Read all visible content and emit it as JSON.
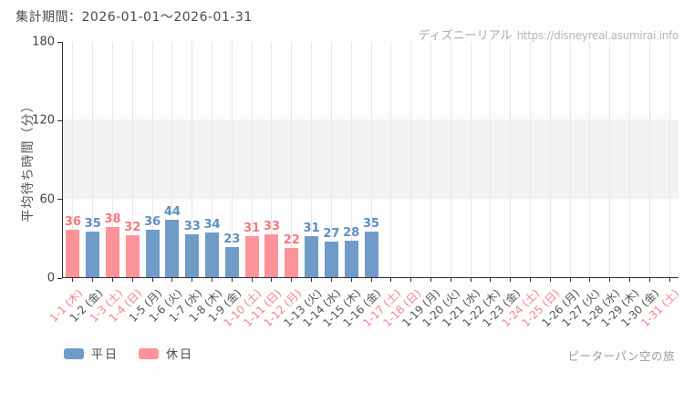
{
  "header": {
    "title": "集計期間：2026-01-01～2026-01-31"
  },
  "watermark": {
    "brand": "ディズニーリアル",
    "url": "https://disneyreal.asumirai.info"
  },
  "footer": {
    "attraction": "ピーターパン空の旅"
  },
  "legend": {
    "items": [
      {
        "label": "平日",
        "color": "#6f9bc9"
      },
      {
        "label": "休日",
        "color": "#fc9399"
      }
    ],
    "position": "bottom-left"
  },
  "colors": {
    "weekday_bar": "#6f9bc9",
    "holiday_bar": "#fc9399",
    "weekday_value_label": "#5e8fc2",
    "holiday_value_label": "#f8777e",
    "weekday_axis_label": "#545454",
    "holiday_axis_label": "#f5848b",
    "band_fill": "#f2f2f2",
    "gridline": "#e7e7e7",
    "axis": "#303030"
  },
  "chart_data": {
    "type": "bar",
    "title": "集計期間：2026-01-01～2026-01-31",
    "xlabel": "",
    "ylabel": "平均待ち時間（分）",
    "ylim": [
      0,
      180
    ],
    "yticks": [
      0,
      60,
      120,
      180
    ],
    "grid": "vertical gridlines per day; shaded horizontal band between 60 and 120",
    "legend_position": "bottom-left",
    "categories": [
      "1-1 (木)",
      "1-2 (金)",
      "1-3 (土)",
      "1-4 (日)",
      "1-5 (月)",
      "1-6 (火)",
      "1-7 (水)",
      "1-8 (木)",
      "1-9 (金)",
      "1-10 (土)",
      "1-11 (日)",
      "1-12 (月)",
      "1-13 (火)",
      "1-14 (水)",
      "1-15 (木)",
      "1-16 (金)",
      "1-17 (土)",
      "1-18 (日)",
      "1-19 (月)",
      "1-20 (火)",
      "1-21 (水)",
      "1-22 (木)",
      "1-23 (金)",
      "1-24 (土)",
      "1-25 (日)",
      "1-26 (月)",
      "1-27 (火)",
      "1-28 (水)",
      "1-29 (木)",
      "1-30 (金)",
      "1-31 (土)"
    ],
    "day_types": [
      "休日",
      "平日",
      "休日",
      "休日",
      "平日",
      "平日",
      "平日",
      "平日",
      "平日",
      "休日",
      "休日",
      "休日",
      "平日",
      "平日",
      "平日",
      "平日",
      "休日",
      "休日",
      "平日",
      "平日",
      "平日",
      "平日",
      "平日",
      "休日",
      "休日",
      "平日",
      "平日",
      "平日",
      "平日",
      "平日",
      "休日"
    ],
    "values": [
      36,
      35,
      38,
      32,
      36,
      44,
      33,
      34,
      23,
      31,
      33,
      22,
      31,
      27,
      28,
      35,
      null,
      null,
      null,
      null,
      null,
      null,
      null,
      null,
      null,
      null,
      null,
      null,
      null,
      null,
      null
    ]
  }
}
